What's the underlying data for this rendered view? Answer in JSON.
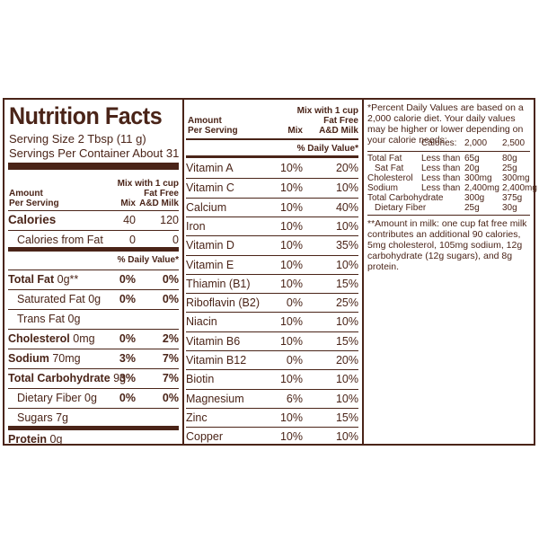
{
  "title": "Nutrition Facts",
  "serving_size": "Serving Size 2 Tbsp (11 g)",
  "servings_per_container": "Servings Per Container About 31",
  "headers": {
    "amount": "Amount",
    "per_serving": "Per Serving",
    "mix": "Mix",
    "milk_line1": "Mix with 1 cup",
    "milk_line2": "Fat Free",
    "milk_line3": "A&D Milk",
    "daily_value": "% Daily Value*"
  },
  "calories": {
    "label": "Calories",
    "mix": "40",
    "milk": "120"
  },
  "calories_fat": {
    "label": "Calories from Fat",
    "mix": "0",
    "milk": "0"
  },
  "nutrients": [
    {
      "label": "Total Fat",
      "amount": "0g**",
      "mix": "0%",
      "milk": "0%"
    },
    {
      "label": "Saturated Fat",
      "amount": "0g",
      "mix": "0%",
      "milk": "0%"
    },
    {
      "label": "Trans Fat",
      "amount": "0g",
      "mix": "",
      "milk": ""
    },
    {
      "label": "Cholesterol",
      "amount": "0mg",
      "mix": "0%",
      "milk": "2%"
    },
    {
      "label": "Sodium",
      "amount": "70mg",
      "mix": "3%",
      "milk": "7%"
    },
    {
      "label": "Total Carbohydrate",
      "amount": "9g",
      "mix": "3%",
      "milk": "7%"
    },
    {
      "label": "Dietary Fiber",
      "amount": "0g",
      "mix": "0%",
      "milk": "0%"
    },
    {
      "label": "Sugars",
      "amount": "7g",
      "mix": "",
      "milk": ""
    },
    {
      "label": "Protein",
      "amount": "0g",
      "mix": "",
      "milk": ""
    }
  ],
  "vitamins": [
    {
      "label": "Vitamin A",
      "mix": "10%",
      "milk": "20%"
    },
    {
      "label": "Vitamin C",
      "mix": "10%",
      "milk": "10%"
    },
    {
      "label": "Calcium",
      "mix": "10%",
      "milk": "40%"
    },
    {
      "label": "Iron",
      "mix": "10%",
      "milk": "10%"
    },
    {
      "label": "Vitamin D",
      "mix": "10%",
      "milk": "35%"
    },
    {
      "label": "Vitamin E",
      "mix": "10%",
      "milk": "10%"
    },
    {
      "label": "Thiamin (B1)",
      "mix": "10%",
      "milk": "15%"
    },
    {
      "label": "Riboflavin (B2)",
      "mix": "0%",
      "milk": "25%"
    },
    {
      "label": "Niacin",
      "mix": "10%",
      "milk": "10%"
    },
    {
      "label": "Vitamin B6",
      "mix": "10%",
      "milk": "15%"
    },
    {
      "label": "Vitamin B12",
      "mix": "0%",
      "milk": "20%"
    },
    {
      "label": "Biotin",
      "mix": "10%",
      "milk": "10%"
    },
    {
      "label": "Magnesium",
      "mix": "6%",
      "milk": "10%"
    },
    {
      "label": "Zinc",
      "mix": "10%",
      "milk": "15%"
    },
    {
      "label": "Copper",
      "mix": "10%",
      "milk": "10%"
    }
  ],
  "footnote1": "*Percent Daily Values are based on a 2,000 calorie diet. Your daily values may be higher or lower depending on your calorie needs:",
  "dv_table": {
    "header": {
      "label": "Calories:",
      "a": "2,000",
      "b": "2,500"
    },
    "rows": [
      {
        "label": "Total Fat",
        "qual": "Less than",
        "a": "65g",
        "b": "80g"
      },
      {
        "label": "Sat Fat",
        "qual": "Less than",
        "a": "20g",
        "b": "25g"
      },
      {
        "label": "Cholesterol",
        "qual": "Less than",
        "a": "300mg",
        "b": "300mg"
      },
      {
        "label": "Sodium",
        "qual": "Less than",
        "a": "2,400mg",
        "b": "2,400mg"
      },
      {
        "label": "Total Carbohydrate",
        "qual": "",
        "a": "300g",
        "b": "375g"
      },
      {
        "label": "Dietary Fiber",
        "qual": "",
        "a": "25g",
        "b": "30g"
      }
    ]
  },
  "footnote2": "**Amount in milk: one cup fat free milk contributes an additional 90 calories, 5mg cholesterol, 105mg sodium, 12g carbohydrate (12g sugars), and 8g protein."
}
